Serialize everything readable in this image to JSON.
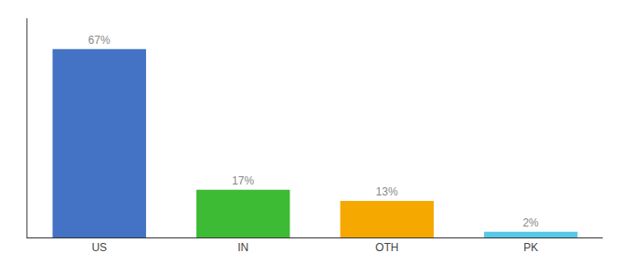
{
  "chart_data": {
    "type": "bar",
    "categories": [
      "US",
      "IN",
      "OTH",
      "PK"
    ],
    "values": [
      67,
      17,
      13,
      2
    ],
    "value_labels": [
      "67%",
      "17%",
      "13%",
      "2%"
    ],
    "colors": [
      "#4472c4",
      "#3dbb35",
      "#f5a800",
      "#56c8e8"
    ],
    "ylim": [
      0,
      78
    ],
    "data_labels": true,
    "tick_labels": "x",
    "grid": false
  }
}
